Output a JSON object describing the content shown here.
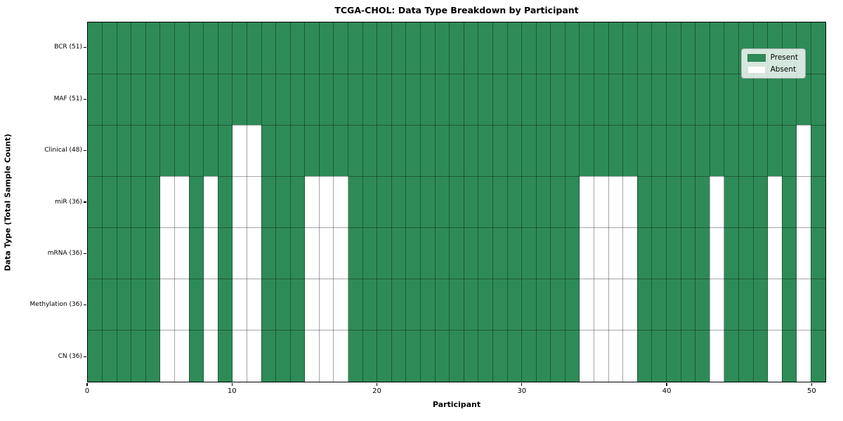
{
  "chart_data": {
    "type": "heatmap",
    "title": "TCGA-CHOL: Data Type Breakdown by Participant",
    "xlabel": "Participant",
    "ylabel": "Data Type (Total Sample Count)",
    "n_participants": 51,
    "x_range": [
      0,
      51
    ],
    "x_ticks": [
      0,
      10,
      20,
      30,
      40,
      50
    ],
    "grid": true,
    "legend_position": "upper right",
    "legend": [
      {
        "label": "Present",
        "color": "#2e8b57"
      },
      {
        "label": "Absent",
        "color": "#ffffff"
      }
    ],
    "colors": {
      "present": "#2e8b57",
      "absent": "#ffffff",
      "grid": "rgba(0,0,0,0.35)"
    },
    "rows": [
      {
        "label": "BCR (51)",
        "present_count": 51,
        "absent_participants": []
      },
      {
        "label": "MAF (51)",
        "present_count": 51,
        "absent_participants": []
      },
      {
        "label": "Clinical (48)",
        "present_count": 48,
        "absent_participants": [
          10,
          11,
          49
        ]
      },
      {
        "label": "miR (36)",
        "present_count": 36,
        "absent_participants": [
          5,
          6,
          8,
          10,
          11,
          15,
          16,
          17,
          34,
          35,
          36,
          37,
          43,
          47,
          49
        ]
      },
      {
        "label": "mRNA (36)",
        "present_count": 36,
        "absent_participants": [
          5,
          6,
          8,
          10,
          11,
          15,
          16,
          17,
          34,
          35,
          36,
          37,
          43,
          47,
          49
        ]
      },
      {
        "label": "Methylation (36)",
        "present_count": 36,
        "absent_participants": [
          5,
          6,
          8,
          10,
          11,
          15,
          16,
          17,
          34,
          35,
          36,
          37,
          43,
          47,
          49
        ]
      },
      {
        "label": "CN (36)",
        "present_count": 36,
        "absent_participants": [
          5,
          6,
          8,
          10,
          11,
          15,
          16,
          17,
          34,
          35,
          36,
          37,
          43,
          47,
          49
        ]
      }
    ]
  }
}
